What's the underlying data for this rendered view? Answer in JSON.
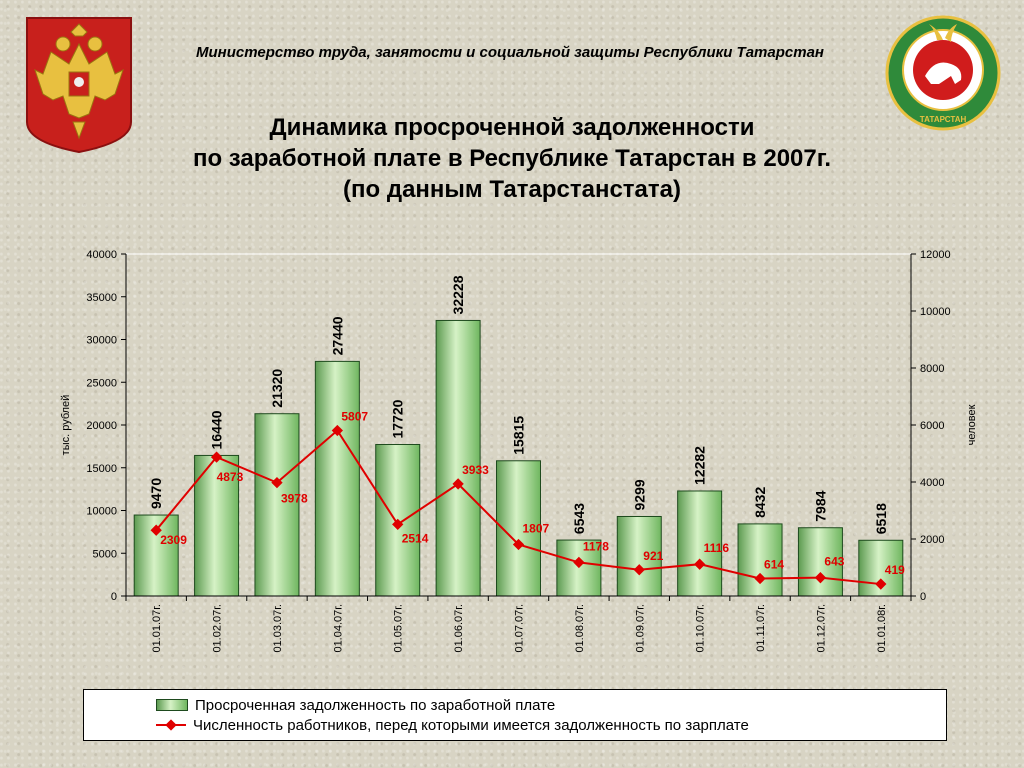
{
  "header": {
    "ministry": "Министерство  труда,  занятости и социальной защиты Республики Татарстан",
    "title_line1": "Динамика просроченной задолженности",
    "title_line2": "по заработной плате в Республике Татарстан в 2007г.",
    "title_line3": "(по данным Татарстанстата)",
    "emblem_right_text": "ТАТАРСТАН"
  },
  "colors": {
    "bar_fill": "#7cc46a",
    "bar_border": "#1e4a1e",
    "line": "#e00000",
    "label_red": "#e00000"
  },
  "chart_data": {
    "type": "bar",
    "categories": [
      "01.01.07г.",
      "01.02.07г.",
      "01.03.07г.",
      "01.04.07г.",
      "01.05.07г.",
      "01.06.07г.",
      "01.07.07г.",
      "01.08.07г.",
      "01.09.07г.",
      "01.10.07г.",
      "01.11.07г.",
      "01.12.07г.",
      "01.01.08г."
    ],
    "series": [
      {
        "name": "Просроченная задолженность по заработной плате",
        "type": "bar",
        "axis": "left",
        "values": [
          9470,
          16440,
          21320,
          27440,
          17720,
          32228,
          15815,
          6543,
          9299,
          12282,
          8432,
          7984,
          6518
        ]
      },
      {
        "name": "Численность работников, перед которыми имеется задолженность по зарплате",
        "type": "line",
        "axis": "right",
        "values": [
          2309,
          4873,
          3978,
          5807,
          2514,
          3933,
          1807,
          1178,
          921,
          1116,
          614,
          643,
          419
        ]
      }
    ],
    "ylabel": "тыс. рублей",
    "ylabel_right": "человек",
    "ylim": [
      0,
      40000
    ],
    "ylim_right": [
      0,
      12000
    ],
    "yticks": [
      0,
      5000,
      10000,
      15000,
      20000,
      25000,
      30000,
      35000,
      40000
    ],
    "yticks_right": [
      0,
      2000,
      4000,
      6000,
      8000,
      10000,
      12000
    ],
    "grid": false,
    "legend_position": "bottom"
  }
}
